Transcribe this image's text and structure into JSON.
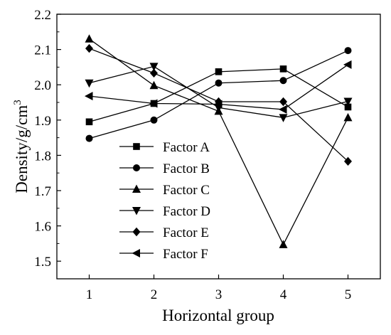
{
  "chart_data": {
    "type": "line",
    "title": "",
    "xlabel": "Horizontal group",
    "ylabel": "Density/g/cm",
    "ylabel_superscript": "3",
    "x": [
      1,
      2,
      3,
      4,
      5
    ],
    "x_ticks": [
      "1",
      "2",
      "3",
      "4",
      "5"
    ],
    "y_ticks": [
      "1.5",
      "1.6",
      "1.7",
      "1.8",
      "1.9",
      "2.0",
      "2.1",
      "2.2"
    ],
    "xlim": [
      0.5,
      5.5
    ],
    "ylim": [
      1.45,
      2.2
    ],
    "grid": false,
    "legend_position": "left-center",
    "series": [
      {
        "name": "Factor A",
        "marker": "square",
        "values": [
          1.895,
          1.947,
          2.037,
          2.045,
          1.937
        ]
      },
      {
        "name": "Factor B",
        "marker": "circle",
        "values": [
          1.848,
          1.9,
          2.005,
          2.012,
          2.097
        ]
      },
      {
        "name": "Factor C",
        "marker": "triangle-up",
        "values": [
          2.13,
          1.998,
          1.925,
          1.547,
          1.907
        ]
      },
      {
        "name": "Factor D",
        "marker": "triangle-down",
        "values": [
          2.005,
          2.052,
          1.935,
          1.907,
          1.953
        ]
      },
      {
        "name": "Factor E",
        "marker": "diamond",
        "values": [
          2.103,
          2.033,
          1.952,
          1.952,
          1.783
        ]
      },
      {
        "name": "Factor F",
        "marker": "triangle-left",
        "values": [
          1.968,
          1.947,
          1.945,
          1.93,
          2.057
        ]
      }
    ]
  }
}
